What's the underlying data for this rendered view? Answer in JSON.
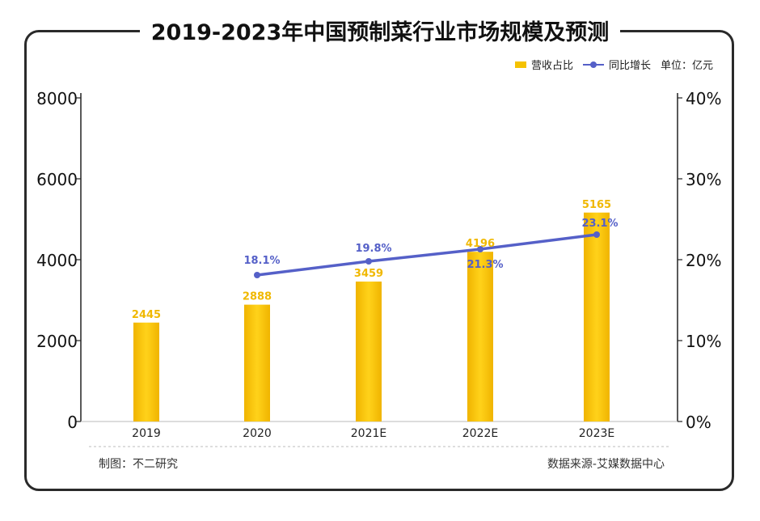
{
  "title": "2019-2023年中国预制菜行业市场规模及预测",
  "legend": {
    "bar_label": "营收占比",
    "line_label": "同比增长",
    "unit": "单位：亿元"
  },
  "footer": {
    "left": "制图：不二研究",
    "right": "数据来源-艾媒数据中心"
  },
  "colors": {
    "bar": "#f5c200",
    "bar_label": "#f0b800",
    "line": "#5560c8",
    "line_label": "#5560c8"
  },
  "chart_data": {
    "type": "bar",
    "categories": [
      "2019",
      "2020",
      "2021E",
      "2022E",
      "2023E"
    ],
    "series": [
      {
        "name": "营收占比",
        "type": "bar",
        "axis": "left",
        "values": [
          2445,
          2888,
          3459,
          4196,
          5165
        ]
      },
      {
        "name": "同比增长",
        "type": "line",
        "axis": "right",
        "values": [
          null,
          18.1,
          19.8,
          21.3,
          23.1
        ]
      }
    ],
    "line_labels": [
      "",
      "18.1%",
      "19.8%",
      "21.3%",
      "23.1%"
    ],
    "y_left": {
      "ylim": [
        0,
        8000
      ],
      "ticks": [
        "0",
        "2000",
        "4000",
        "6000",
        "8000"
      ]
    },
    "y_right": {
      "ylim": [
        0,
        40
      ],
      "ticks": [
        "0%",
        "10%",
        "20%",
        "30%",
        "40%"
      ]
    },
    "grid": false,
    "legend_position": "top-right"
  }
}
